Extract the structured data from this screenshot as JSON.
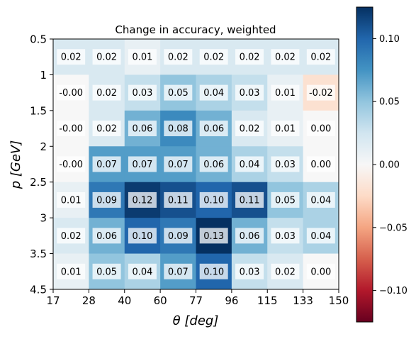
{
  "chart_data": {
    "type": "heatmap",
    "title": "Change in accuracy, weighted",
    "xlabel": "θ [deg]",
    "ylabel": "p [GeV]",
    "x_edges": [
      "17",
      "28",
      "40",
      "60",
      "77",
      "96",
      "115",
      "133",
      "150"
    ],
    "y_edges": [
      "0.5",
      "1",
      "1.5",
      "2",
      "2.5",
      "3",
      "3.5",
      "4.5"
    ],
    "values": [
      [
        0.02,
        0.02,
        0.01,
        0.02,
        0.02,
        0.02,
        0.02,
        0.02
      ],
      [
        -0.0,
        0.02,
        0.03,
        0.05,
        0.04,
        0.03,
        0.01,
        -0.02
      ],
      [
        -0.0,
        0.02,
        0.06,
        0.08,
        0.06,
        0.02,
        0.01,
        0.0
      ],
      [
        -0.0,
        0.07,
        0.07,
        0.07,
        0.06,
        0.04,
        0.03,
        0.0
      ],
      [
        0.01,
        0.09,
        0.12,
        0.11,
        0.1,
        0.11,
        0.05,
        0.04
      ],
      [
        0.02,
        0.06,
        0.1,
        0.09,
        0.13,
        0.06,
        0.03,
        0.04
      ],
      [
        0.01,
        0.05,
        0.04,
        0.07,
        0.1,
        0.03,
        0.02,
        0.0
      ]
    ],
    "cell_labels": [
      [
        "0.02",
        "0.02",
        "0.01",
        "0.02",
        "0.02",
        "0.02",
        "0.02",
        "0.02"
      ],
      [
        "-0.00",
        "0.02",
        "0.03",
        "0.05",
        "0.04",
        "0.03",
        "0.01",
        "-0.02"
      ],
      [
        "-0.00",
        "0.02",
        "0.06",
        "0.08",
        "0.06",
        "0.02",
        "0.01",
        "0.00"
      ],
      [
        "-0.00",
        "0.07",
        "0.07",
        "0.07",
        "0.06",
        "0.04",
        "0.03",
        "0.00"
      ],
      [
        "0.01",
        "0.09",
        "0.12",
        "0.11",
        "0.10",
        "0.11",
        "0.05",
        "0.04"
      ],
      [
        "0.02",
        "0.06",
        "0.10",
        "0.09",
        "0.13",
        "0.06",
        "0.03",
        "0.04"
      ],
      [
        "0.01",
        "0.05",
        "0.04",
        "0.07",
        "0.10",
        "0.03",
        "0.02",
        "0.00"
      ]
    ],
    "colormap": "RdBu",
    "vlim": [
      -0.125,
      0.125
    ],
    "colorbar_ticks": [
      0.1,
      0.05,
      0.0,
      -0.05,
      -0.1
    ],
    "colorbar_tick_labels": [
      "0.10",
      "0.05",
      "0.00",
      "−0.05",
      "−0.10"
    ],
    "colors": {
      "negative": "#67001f",
      "zero": "#f7f7f7",
      "positive": "#053061",
      "label_box": "#ffffff"
    }
  }
}
